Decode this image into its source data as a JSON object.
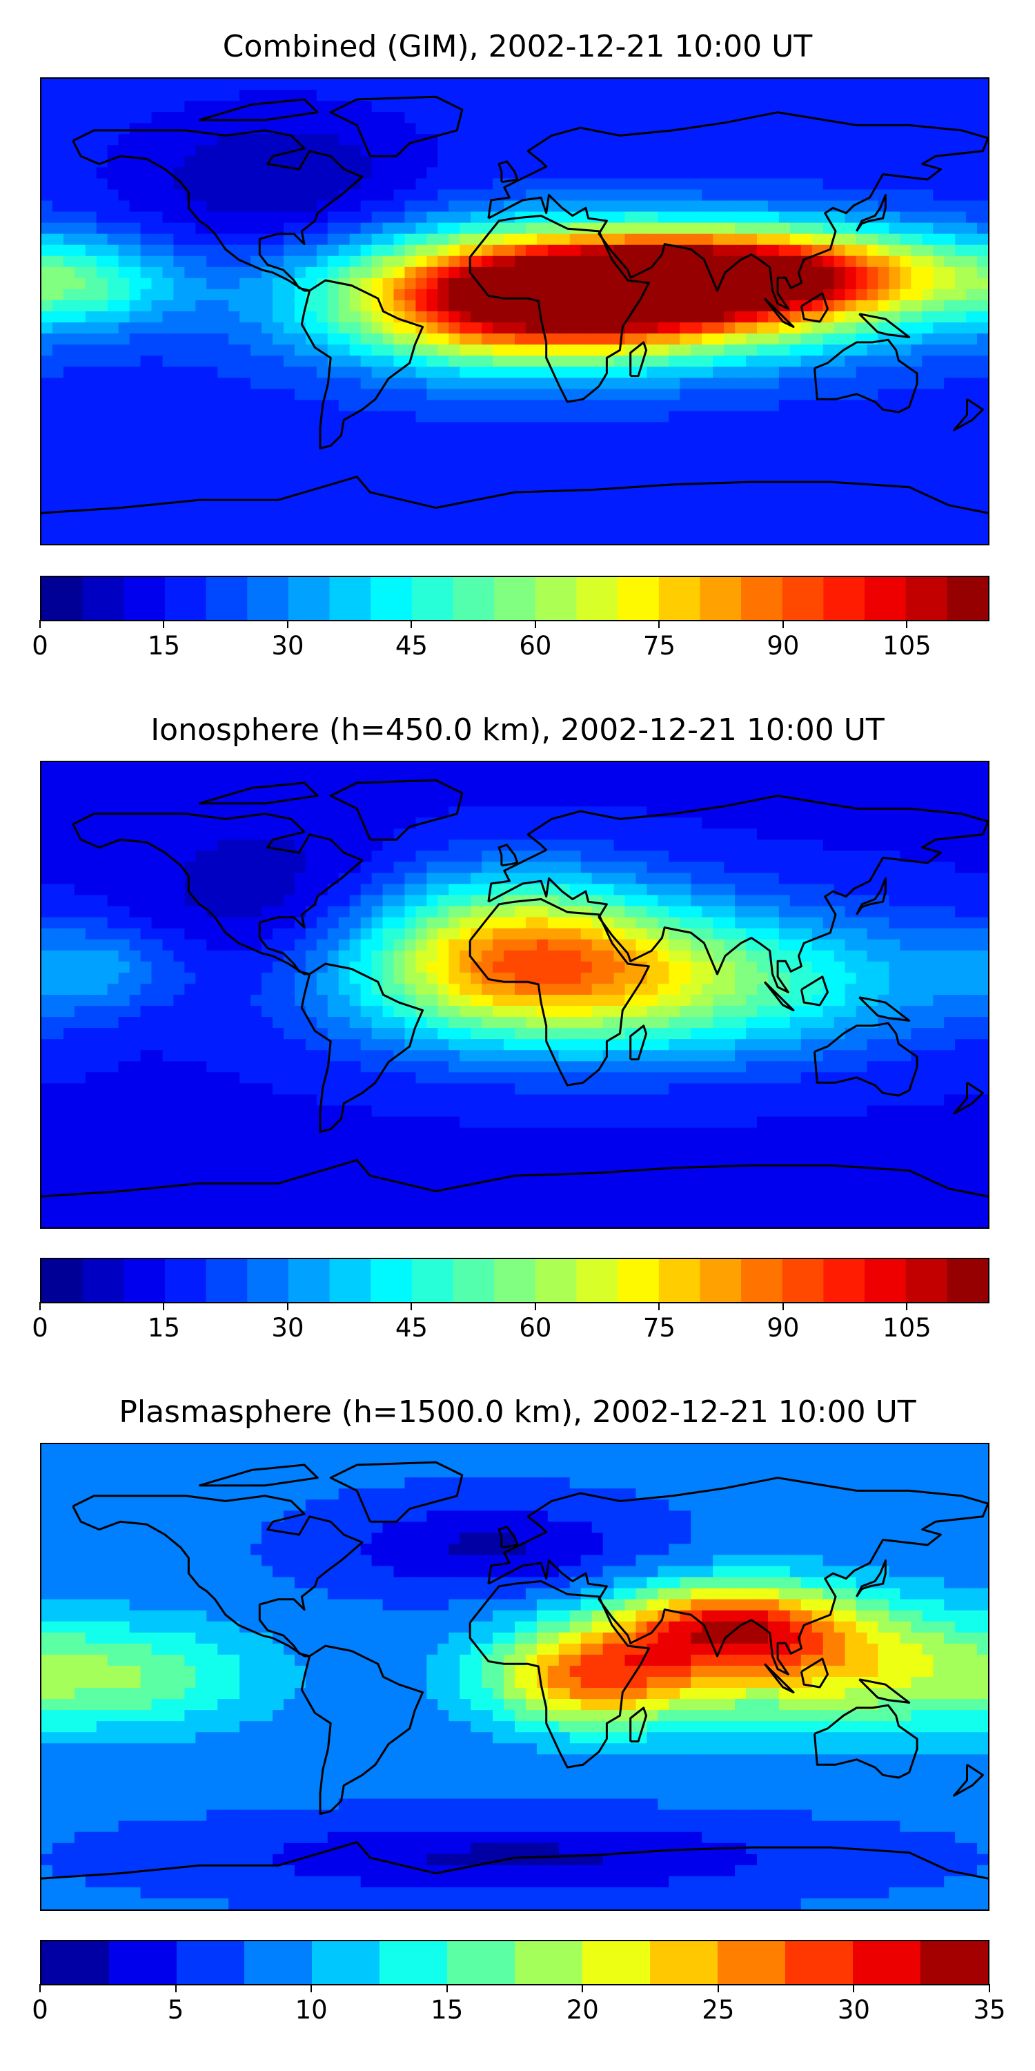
{
  "panels": [
    {
      "title": "Combined (GIM), 2002-12-21 10:00 UT",
      "colorbar": {
        "vmin": 0,
        "vmax": 115,
        "levels": 23,
        "ticks": [
          0,
          15,
          30,
          45,
          60,
          75,
          90,
          105
        ],
        "tick_labels": [
          "0",
          "15",
          "30",
          "45",
          "60",
          "75",
          "90",
          "105"
        ]
      },
      "field": {
        "background": 18,
        "blobs": [
          {
            "lon": 40,
            "lat": 5,
            "v": 92,
            "slon": 70,
            "slat": 16
          },
          {
            "lon": 90,
            "lat": 15,
            "v": 88,
            "slon": 55,
            "slat": 12
          },
          {
            "lon": 0,
            "lat": 5,
            "v": 65,
            "slon": 45,
            "slat": 18
          },
          {
            "lon": -160,
            "lat": 10,
            "v": 40,
            "slon": 25,
            "slat": 12
          },
          {
            "lon": -90,
            "lat": 50,
            "v": 5,
            "slon": 40,
            "slat": 20
          }
        ]
      }
    },
    {
      "title": "Ionosphere  (h=450.0 km), 2002-12-21 10:00 UT",
      "colorbar": {
        "vmin": 0,
        "vmax": 115,
        "levels": 23,
        "ticks": [
          0,
          15,
          30,
          45,
          60,
          75,
          90,
          105
        ],
        "tick_labels": [
          "0",
          "15",
          "30",
          "45",
          "60",
          "75",
          "90",
          "105"
        ]
      },
      "field": {
        "background": 14,
        "blobs": [
          {
            "lon": 40,
            "lat": 5,
            "v": 65,
            "slon": 75,
            "slat": 20
          },
          {
            "lon": 0,
            "lat": 20,
            "v": 55,
            "slon": 40,
            "slat": 20
          },
          {
            "lon": -90,
            "lat": 30,
            "v": 4,
            "slon": 35,
            "slat": 25
          },
          {
            "lon": -160,
            "lat": 10,
            "v": 30,
            "slon": 25,
            "slat": 12
          }
        ]
      }
    },
    {
      "title": "Plasmasphere (h=1500.0 km), 2002-12-21 10:00 UT",
      "colorbar": {
        "vmin": 0,
        "vmax": 35,
        "levels": 14,
        "ticks": [
          0,
          5,
          10,
          15,
          20,
          25,
          30,
          35
        ],
        "tick_labels": [
          "0",
          "5",
          "10",
          "15",
          "20",
          "25",
          "30",
          "35"
        ]
      },
      "field": {
        "background": 8,
        "blobs": [
          {
            "lon": 30,
            "lat": 0,
            "v": 27,
            "slon": 30,
            "slat": 14
          },
          {
            "lon": 80,
            "lat": 20,
            "v": 26,
            "slon": 30,
            "slat": 12
          },
          {
            "lon": 120,
            "lat": 5,
            "v": 21,
            "slon": 40,
            "slat": 18
          },
          {
            "lon": -150,
            "lat": 0,
            "v": 17,
            "slon": 40,
            "slat": 15
          },
          {
            "lon": -10,
            "lat": 50,
            "v": 2,
            "slon": 40,
            "slat": 12
          },
          {
            "lon": 0,
            "lat": -70,
            "v": 2,
            "slon": 80,
            "slat": 10
          }
        ]
      }
    }
  ],
  "colormap": "jet",
  "coastline_color": "#000000"
}
